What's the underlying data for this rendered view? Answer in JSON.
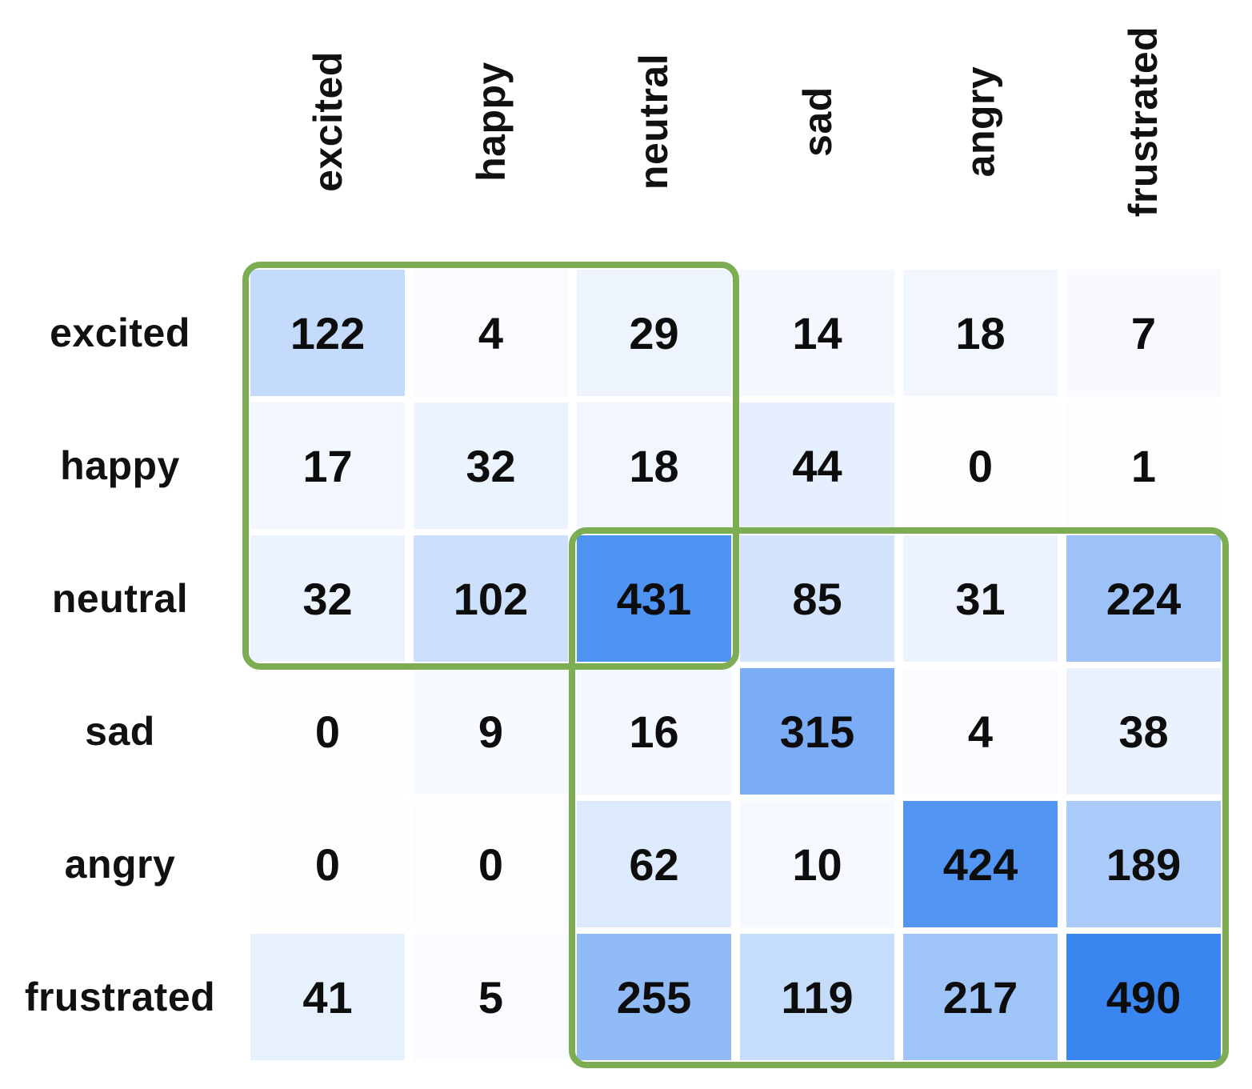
{
  "chart_data": {
    "type": "heatmap",
    "title": "",
    "categories": [
      "excited",
      "happy",
      "neutral",
      "sad",
      "angry",
      "frustrated"
    ],
    "row_labels": [
      "excited",
      "happy",
      "neutral",
      "sad",
      "angry",
      "frustrated"
    ],
    "matrix": [
      [
        122,
        4,
        29,
        14,
        18,
        7
      ],
      [
        17,
        32,
        18,
        44,
        0,
        1
      ],
      [
        32,
        102,
        431,
        85,
        31,
        224
      ],
      [
        0,
        9,
        16,
        315,
        4,
        38
      ],
      [
        0,
        0,
        62,
        10,
        424,
        189
      ],
      [
        41,
        5,
        255,
        119,
        217,
        490
      ]
    ],
    "value_range": [
      0,
      490
    ],
    "colors": {
      "cell_low": "#fcfdff",
      "cell_high": "#3a86f0",
      "gamma": 0.9,
      "highlight_border": "#7dad53",
      "text": "#0d0d0d"
    },
    "legend_position": "none",
    "grid": false,
    "highlight_boxes": [
      {
        "rows": [
          0,
          2
        ],
        "cols": [
          0,
          2
        ]
      },
      {
        "rows": [
          2,
          5
        ],
        "cols": [
          2,
          5
        ]
      }
    ]
  }
}
